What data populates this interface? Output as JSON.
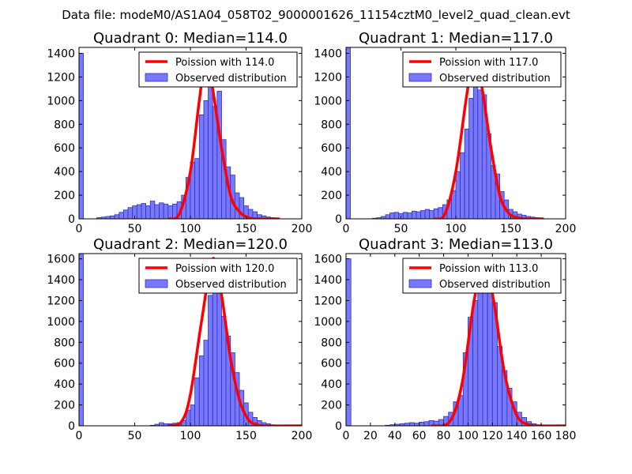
{
  "figure": {
    "suptitle": "Data file: modeM0/AS1A04_058T02_9000001626_11154cztM0_level2_quad_clean.evt"
  },
  "colors": {
    "bar_fill": "#7777ff",
    "bar_edge": "#3333aa",
    "curve": "#ff0000",
    "curve_peak": "#ff8a8a"
  },
  "chart_data": [
    {
      "type": "bar",
      "title": "Quadrant 0: Median=114.0",
      "median": 114.0,
      "bin_width": 4,
      "xlim": [
        0,
        200
      ],
      "ylim": [
        0,
        1450
      ],
      "xticks": [
        0,
        50,
        100,
        150,
        200
      ],
      "xtick_labels": [
        "0",
        "50",
        "100",
        "150",
        "200"
      ],
      "yticks": [
        0,
        200,
        400,
        600,
        800,
        1000,
        1200,
        1400
      ],
      "ytick_labels": [
        "0",
        "200",
        "400",
        "600",
        "800",
        "1000",
        "1200",
        "1400"
      ],
      "legend": {
        "position": "top-right",
        "entries": [
          "Poission with 114.0",
          "Observed distribution"
        ]
      },
      "bins": [
        [
          0,
          1400
        ],
        [
          16,
          10
        ],
        [
          20,
          15
        ],
        [
          24,
          20
        ],
        [
          28,
          25
        ],
        [
          32,
          35
        ],
        [
          36,
          55
        ],
        [
          40,
          75
        ],
        [
          44,
          95
        ],
        [
          48,
          110
        ],
        [
          52,
          120
        ],
        [
          56,
          130
        ],
        [
          60,
          110
        ],
        [
          64,
          150
        ],
        [
          68,
          120
        ],
        [
          72,
          135
        ],
        [
          76,
          125
        ],
        [
          80,
          110
        ],
        [
          84,
          125
        ],
        [
          88,
          145
        ],
        [
          92,
          200
        ],
        [
          96,
          350
        ],
        [
          100,
          480
        ],
        [
          104,
          510
        ],
        [
          108,
          880
        ],
        [
          112,
          1000
        ],
        [
          116,
          1400
        ],
        [
          120,
          950
        ],
        [
          124,
          1080
        ],
        [
          128,
          670
        ],
        [
          132,
          440
        ],
        [
          136,
          370
        ],
        [
          140,
          220
        ],
        [
          144,
          180
        ],
        [
          148,
          110
        ],
        [
          152,
          80
        ],
        [
          156,
          60
        ],
        [
          160,
          35
        ],
        [
          164,
          25
        ],
        [
          168,
          15
        ],
        [
          172,
          10
        ],
        [
          176,
          5
        ]
      ],
      "poisson_curve": [
        [
          80,
          0
        ],
        [
          90,
          40
        ],
        [
          100,
          400
        ],
        [
          108,
          1000
        ],
        [
          114,
          1360
        ],
        [
          120,
          1100
        ],
        [
          128,
          600
        ],
        [
          136,
          200
        ],
        [
          144,
          60
        ],
        [
          152,
          10
        ],
        [
          160,
          0
        ],
        [
          180,
          0
        ]
      ]
    },
    {
      "type": "bar",
      "title": "Quadrant 1: Median=117.0",
      "median": 117.0,
      "bin_width": 4,
      "xlim": [
        0,
        200
      ],
      "ylim": [
        0,
        1450
      ],
      "xticks": [
        0,
        50,
        100,
        150,
        200
      ],
      "xtick_labels": [
        "0",
        "50",
        "100",
        "150",
        "200"
      ],
      "yticks": [
        0,
        200,
        400,
        600,
        800,
        1000,
        1200,
        1400
      ],
      "ytick_labels": [
        "0",
        "200",
        "400",
        "600",
        "800",
        "1000",
        "1200",
        "1400"
      ],
      "legend": {
        "position": "top-right",
        "entries": [
          "Poission with 117.0",
          "Observed distribution"
        ]
      },
      "bins": [
        [
          0,
          1450
        ],
        [
          24,
          5
        ],
        [
          28,
          10
        ],
        [
          32,
          20
        ],
        [
          36,
          35
        ],
        [
          40,
          50
        ],
        [
          44,
          55
        ],
        [
          48,
          45
        ],
        [
          52,
          55
        ],
        [
          56,
          50
        ],
        [
          60,
          65
        ],
        [
          64,
          60
        ],
        [
          68,
          70
        ],
        [
          72,
          80
        ],
        [
          76,
          70
        ],
        [
          80,
          85
        ],
        [
          84,
          95
        ],
        [
          88,
          120
        ],
        [
          92,
          160
        ],
        [
          96,
          240
        ],
        [
          100,
          400
        ],
        [
          104,
          560
        ],
        [
          108,
          760
        ],
        [
          112,
          1020
        ],
        [
          116,
          1400
        ],
        [
          120,
          1090
        ],
        [
          124,
          1050
        ],
        [
          128,
          720
        ],
        [
          132,
          450
        ],
        [
          136,
          380
        ],
        [
          140,
          230
        ],
        [
          144,
          160
        ],
        [
          148,
          80
        ],
        [
          152,
          60
        ],
        [
          156,
          40
        ],
        [
          160,
          30
        ],
        [
          164,
          20
        ],
        [
          168,
          15
        ],
        [
          172,
          10
        ],
        [
          176,
          5
        ]
      ],
      "poisson_curve": [
        [
          80,
          0
        ],
        [
          90,
          40
        ],
        [
          100,
          400
        ],
        [
          110,
          1050
        ],
        [
          117,
          1400
        ],
        [
          124,
          1100
        ],
        [
          132,
          600
        ],
        [
          140,
          200
        ],
        [
          148,
          50
        ],
        [
          156,
          10
        ],
        [
          164,
          0
        ],
        [
          180,
          0
        ]
      ]
    },
    {
      "type": "bar",
      "title": "Quadrant 2: Median=120.0",
      "median": 120.0,
      "bin_width": 4,
      "xlim": [
        0,
        200
      ],
      "ylim": [
        0,
        1650
      ],
      "xticks": [
        0,
        50,
        100,
        150,
        200
      ],
      "xtick_labels": [
        "0",
        "50",
        "100",
        "150",
        "200"
      ],
      "yticks": [
        0,
        200,
        400,
        600,
        800,
        1000,
        1200,
        1400,
        1600
      ],
      "ytick_labels": [
        "0",
        "200",
        "400",
        "600",
        "800",
        "1000",
        "1200",
        "1400",
        "1600"
      ],
      "legend": {
        "position": "top-right",
        "entries": [
          "Poission with 120.0",
          "Observed distribution"
        ]
      },
      "bins": [
        [
          0,
          1650
        ],
        [
          64,
          5
        ],
        [
          68,
          15
        ],
        [
          72,
          30
        ],
        [
          76,
          20
        ],
        [
          80,
          20
        ],
        [
          84,
          25
        ],
        [
          88,
          30
        ],
        [
          92,
          50
        ],
        [
          96,
          150
        ],
        [
          100,
          200
        ],
        [
          104,
          460
        ],
        [
          108,
          670
        ],
        [
          112,
          820
        ],
        [
          116,
          1250
        ],
        [
          120,
          1470
        ],
        [
          124,
          1350
        ],
        [
          128,
          1050
        ],
        [
          132,
          860
        ],
        [
          136,
          700
        ],
        [
          140,
          510
        ],
        [
          144,
          340
        ],
        [
          148,
          220
        ],
        [
          152,
          130
        ],
        [
          156,
          80
        ],
        [
          160,
          50
        ],
        [
          164,
          30
        ],
        [
          168,
          20
        ],
        [
          172,
          10
        ],
        [
          176,
          5
        ]
      ],
      "poisson_curve": [
        [
          80,
          0
        ],
        [
          92,
          40
        ],
        [
          100,
          300
        ],
        [
          110,
          1000
        ],
        [
          120,
          1600
        ],
        [
          128,
          1250
        ],
        [
          136,
          650
        ],
        [
          144,
          250
        ],
        [
          152,
          60
        ],
        [
          160,
          10
        ],
        [
          168,
          0
        ],
        [
          200,
          0
        ]
      ]
    },
    {
      "type": "bar",
      "title": "Quadrant 3: Median=113.0",
      "median": 113.0,
      "bin_width": 4,
      "xlim": [
        0,
        180
      ],
      "ylim": [
        0,
        1650
      ],
      "xticks": [
        0,
        20,
        40,
        60,
        80,
        100,
        120,
        140,
        160,
        180
      ],
      "xtick_labels": [
        "0",
        "20",
        "40",
        "60",
        "80",
        "100",
        "120",
        "140",
        "160",
        "180"
      ],
      "yticks": [
        0,
        200,
        400,
        600,
        800,
        1000,
        1200,
        1400,
        1600
      ],
      "ytick_labels": [
        "0",
        "200",
        "400",
        "600",
        "800",
        "1000",
        "1200",
        "1400",
        "1600"
      ],
      "legend": {
        "position": "top-right",
        "entries": [
          "Poission with 113.0",
          "Observed distribution"
        ]
      },
      "bins": [
        [
          0,
          1600
        ],
        [
          32,
          5
        ],
        [
          36,
          10
        ],
        [
          40,
          15
        ],
        [
          44,
          20
        ],
        [
          48,
          25
        ],
        [
          52,
          30
        ],
        [
          56,
          25
        ],
        [
          60,
          35
        ],
        [
          64,
          40
        ],
        [
          68,
          50
        ],
        [
          72,
          45
        ],
        [
          76,
          60
        ],
        [
          80,
          90
        ],
        [
          84,
          130
        ],
        [
          88,
          230
        ],
        [
          92,
          290
        ],
        [
          96,
          700
        ],
        [
          100,
          1040
        ],
        [
          104,
          1200
        ],
        [
          108,
          1430
        ],
        [
          112,
          1510
        ],
        [
          116,
          1390
        ],
        [
          120,
          1180
        ],
        [
          124,
          760
        ],
        [
          128,
          530
        ],
        [
          132,
          360
        ],
        [
          136,
          230
        ],
        [
          140,
          130
        ],
        [
          144,
          80
        ],
        [
          148,
          40
        ],
        [
          152,
          20
        ],
        [
          156,
          10
        ],
        [
          160,
          5
        ]
      ],
      "poisson_curve": [
        [
          70,
          0
        ],
        [
          85,
          40
        ],
        [
          95,
          400
        ],
        [
          105,
          1200
        ],
        [
          113,
          1570
        ],
        [
          121,
          1200
        ],
        [
          130,
          500
        ],
        [
          140,
          100
        ],
        [
          150,
          10
        ],
        [
          160,
          0
        ],
        [
          180,
          0
        ]
      ]
    }
  ]
}
